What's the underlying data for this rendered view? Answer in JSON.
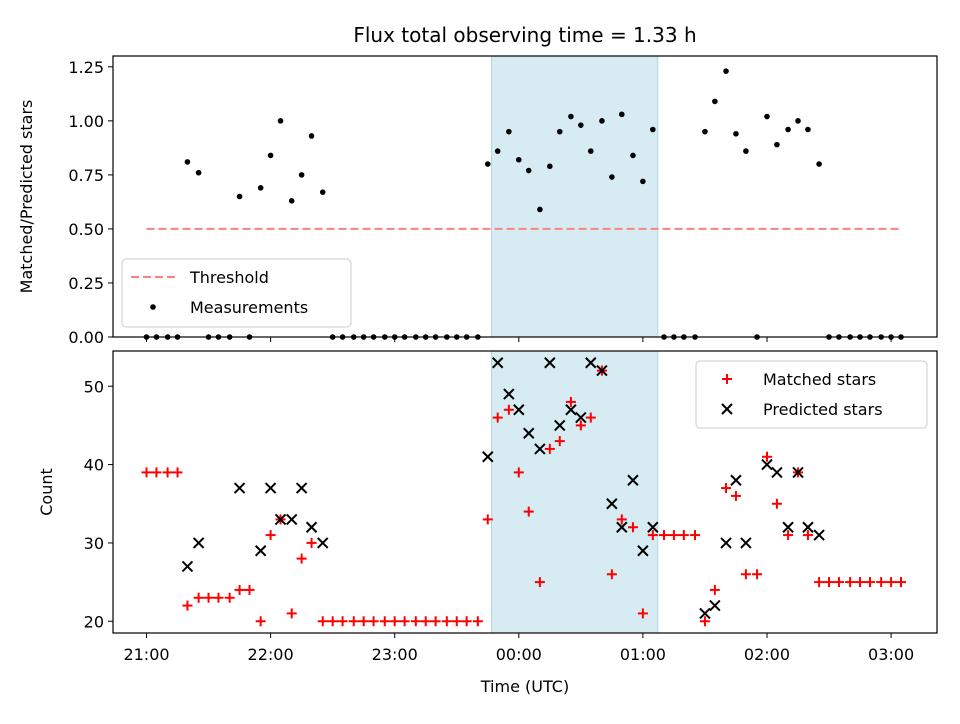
{
  "title": "Flux total observing time = 1.33 h",
  "chart_data": [
    {
      "type": "scatter",
      "panel": "top",
      "ylabel": "Matched/Predicted stars",
      "ylim": [
        0,
        1.3
      ],
      "yticks": [
        "0.00",
        "0.25",
        "0.50",
        "0.75",
        "1.00",
        "1.25"
      ],
      "highlight_span_hours": [
        23.78,
        25.12
      ],
      "highlight_color": "#add8e6",
      "threshold": {
        "name": "Threshold",
        "value": 0.5,
        "x_range": [
          21.0,
          27.08
        ],
        "color": "#ff7f7f"
      },
      "legend": {
        "position": "lower-left",
        "entries": [
          "Threshold",
          "Measurements"
        ]
      },
      "series": [
        {
          "name": "Measurements",
          "color": "#000000",
          "x": [
            21.0,
            21.08,
            21.17,
            21.25,
            21.33,
            21.42,
            21.5,
            21.58,
            21.67,
            21.75,
            21.83,
            21.92,
            22.0,
            22.08,
            22.17,
            22.25,
            22.33,
            22.42,
            22.5,
            22.58,
            22.67,
            22.75,
            22.83,
            22.92,
            23.0,
            23.08,
            23.17,
            23.25,
            23.33,
            23.42,
            23.5,
            23.58,
            23.67,
            23.75,
            23.83,
            23.92,
            24.0,
            24.08,
            24.17,
            24.25,
            24.33,
            24.42,
            24.5,
            24.58,
            24.67,
            24.75,
            24.83,
            24.92,
            25.0,
            25.08,
            25.17,
            25.25,
            25.33,
            25.42,
            25.5,
            25.58,
            25.67,
            25.75,
            25.83,
            25.92,
            26.0,
            26.08,
            26.17,
            26.25,
            26.33,
            26.42,
            26.5,
            26.58,
            26.67,
            26.75,
            26.83,
            26.92,
            27.0,
            27.08
          ],
          "y": [
            0,
            0,
            0,
            0,
            0.81,
            0.76,
            0,
            0,
            0,
            0.65,
            0,
            0.69,
            0.84,
            1.0,
            0.63,
            0.75,
            0.93,
            0.67,
            0,
            0,
            0,
            0,
            0,
            0,
            0,
            0,
            0,
            0,
            0,
            0,
            0,
            0,
            0,
            0.8,
            0.86,
            0.95,
            0.82,
            0.77,
            0.59,
            0.79,
            0.95,
            1.02,
            0.98,
            0.86,
            1.0,
            0.74,
            1.03,
            0.84,
            0.72,
            0.96,
            0,
            0,
            0,
            0,
            0.95,
            1.09,
            1.23,
            0.94,
            0.86,
            0,
            1.02,
            0.89,
            0.96,
            1.0,
            0.96,
            0.8,
            0,
            0,
            0,
            0,
            0,
            0,
            0,
            0
          ]
        }
      ]
    },
    {
      "type": "scatter",
      "panel": "bottom",
      "ylabel": "Count",
      "xlabel": "Time (UTC)",
      "ylim": [
        18.5,
        54.5
      ],
      "yticks": [
        "20",
        "30",
        "40",
        "50"
      ],
      "xlim_hours": [
        20.73,
        27.37
      ],
      "xticks": [
        {
          "hour": 21,
          "label": "21:00"
        },
        {
          "hour": 22,
          "label": "22:00"
        },
        {
          "hour": 23,
          "label": "23:00"
        },
        {
          "hour": 24,
          "label": "00:00"
        },
        {
          "hour": 25,
          "label": "01:00"
        },
        {
          "hour": 26,
          "label": "02:00"
        },
        {
          "hour": 27,
          "label": "03:00"
        }
      ],
      "highlight_span_hours": [
        23.78,
        25.12
      ],
      "legend": {
        "position": "top-right",
        "entries": [
          "Matched stars",
          "Predicted stars"
        ]
      },
      "series": [
        {
          "name": "Matched stars",
          "marker": "plus",
          "color": "#ff0000",
          "x": [
            21.0,
            21.08,
            21.17,
            21.25,
            21.33,
            21.42,
            21.5,
            21.58,
            21.67,
            21.75,
            21.83,
            21.92,
            22.0,
            22.08,
            22.17,
            22.25,
            22.33,
            22.42,
            22.5,
            22.58,
            22.67,
            22.75,
            22.83,
            22.92,
            23.0,
            23.08,
            23.17,
            23.25,
            23.33,
            23.42,
            23.5,
            23.58,
            23.67,
            23.75,
            23.83,
            23.92,
            24.0,
            24.08,
            24.17,
            24.25,
            24.33,
            24.42,
            24.5,
            24.58,
            24.67,
            24.75,
            24.83,
            24.92,
            25.0,
            25.08,
            25.17,
            25.25,
            25.33,
            25.42,
            25.5,
            25.58,
            25.67,
            25.75,
            25.83,
            25.92,
            26.0,
            26.08,
            26.17,
            26.25,
            26.33,
            26.42,
            26.5,
            26.58,
            26.67,
            26.75,
            26.83,
            26.92,
            27.0,
            27.08
          ],
          "y": [
            39,
            39,
            39,
            39,
            22,
            23,
            23,
            23,
            23,
            24,
            24,
            20,
            31,
            33,
            21,
            28,
            30,
            20,
            20,
            20,
            20,
            20,
            20,
            20,
            20,
            20,
            20,
            20,
            20,
            20,
            20,
            20,
            20,
            33,
            46,
            47,
            39,
            34,
            25,
            42,
            43,
            48,
            45,
            46,
            52,
            26,
            33,
            32,
            21,
            31,
            31,
            31,
            31,
            31,
            20,
            24,
            37,
            36,
            26,
            26,
            41,
            35,
            31,
            39,
            31,
            25,
            25,
            25,
            25,
            25,
            25,
            25,
            25,
            25
          ]
        },
        {
          "name": "Predicted stars",
          "marker": "x",
          "color": "#000000",
          "x": [
            21.33,
            21.42,
            21.75,
            21.92,
            22.0,
            22.08,
            22.17,
            22.25,
            22.33,
            22.42,
            23.75,
            23.83,
            23.92,
            24.0,
            24.08,
            24.17,
            24.25,
            24.33,
            24.42,
            24.5,
            24.58,
            24.67,
            24.75,
            24.83,
            24.92,
            25.0,
            25.08,
            25.5,
            25.58,
            25.67,
            25.75,
            25.83,
            26.0,
            26.08,
            26.17,
            26.25,
            26.33,
            26.42
          ],
          "y": [
            27,
            30,
            37,
            29,
            37,
            33,
            33,
            37,
            32,
            30,
            41,
            53,
            49,
            47,
            44,
            42,
            53,
            45,
            47,
            46,
            53,
            52,
            35,
            32,
            38,
            29,
            32,
            21,
            22,
            30,
            38,
            30,
            40,
            39,
            32,
            39,
            32,
            31
          ]
        }
      ]
    }
  ]
}
